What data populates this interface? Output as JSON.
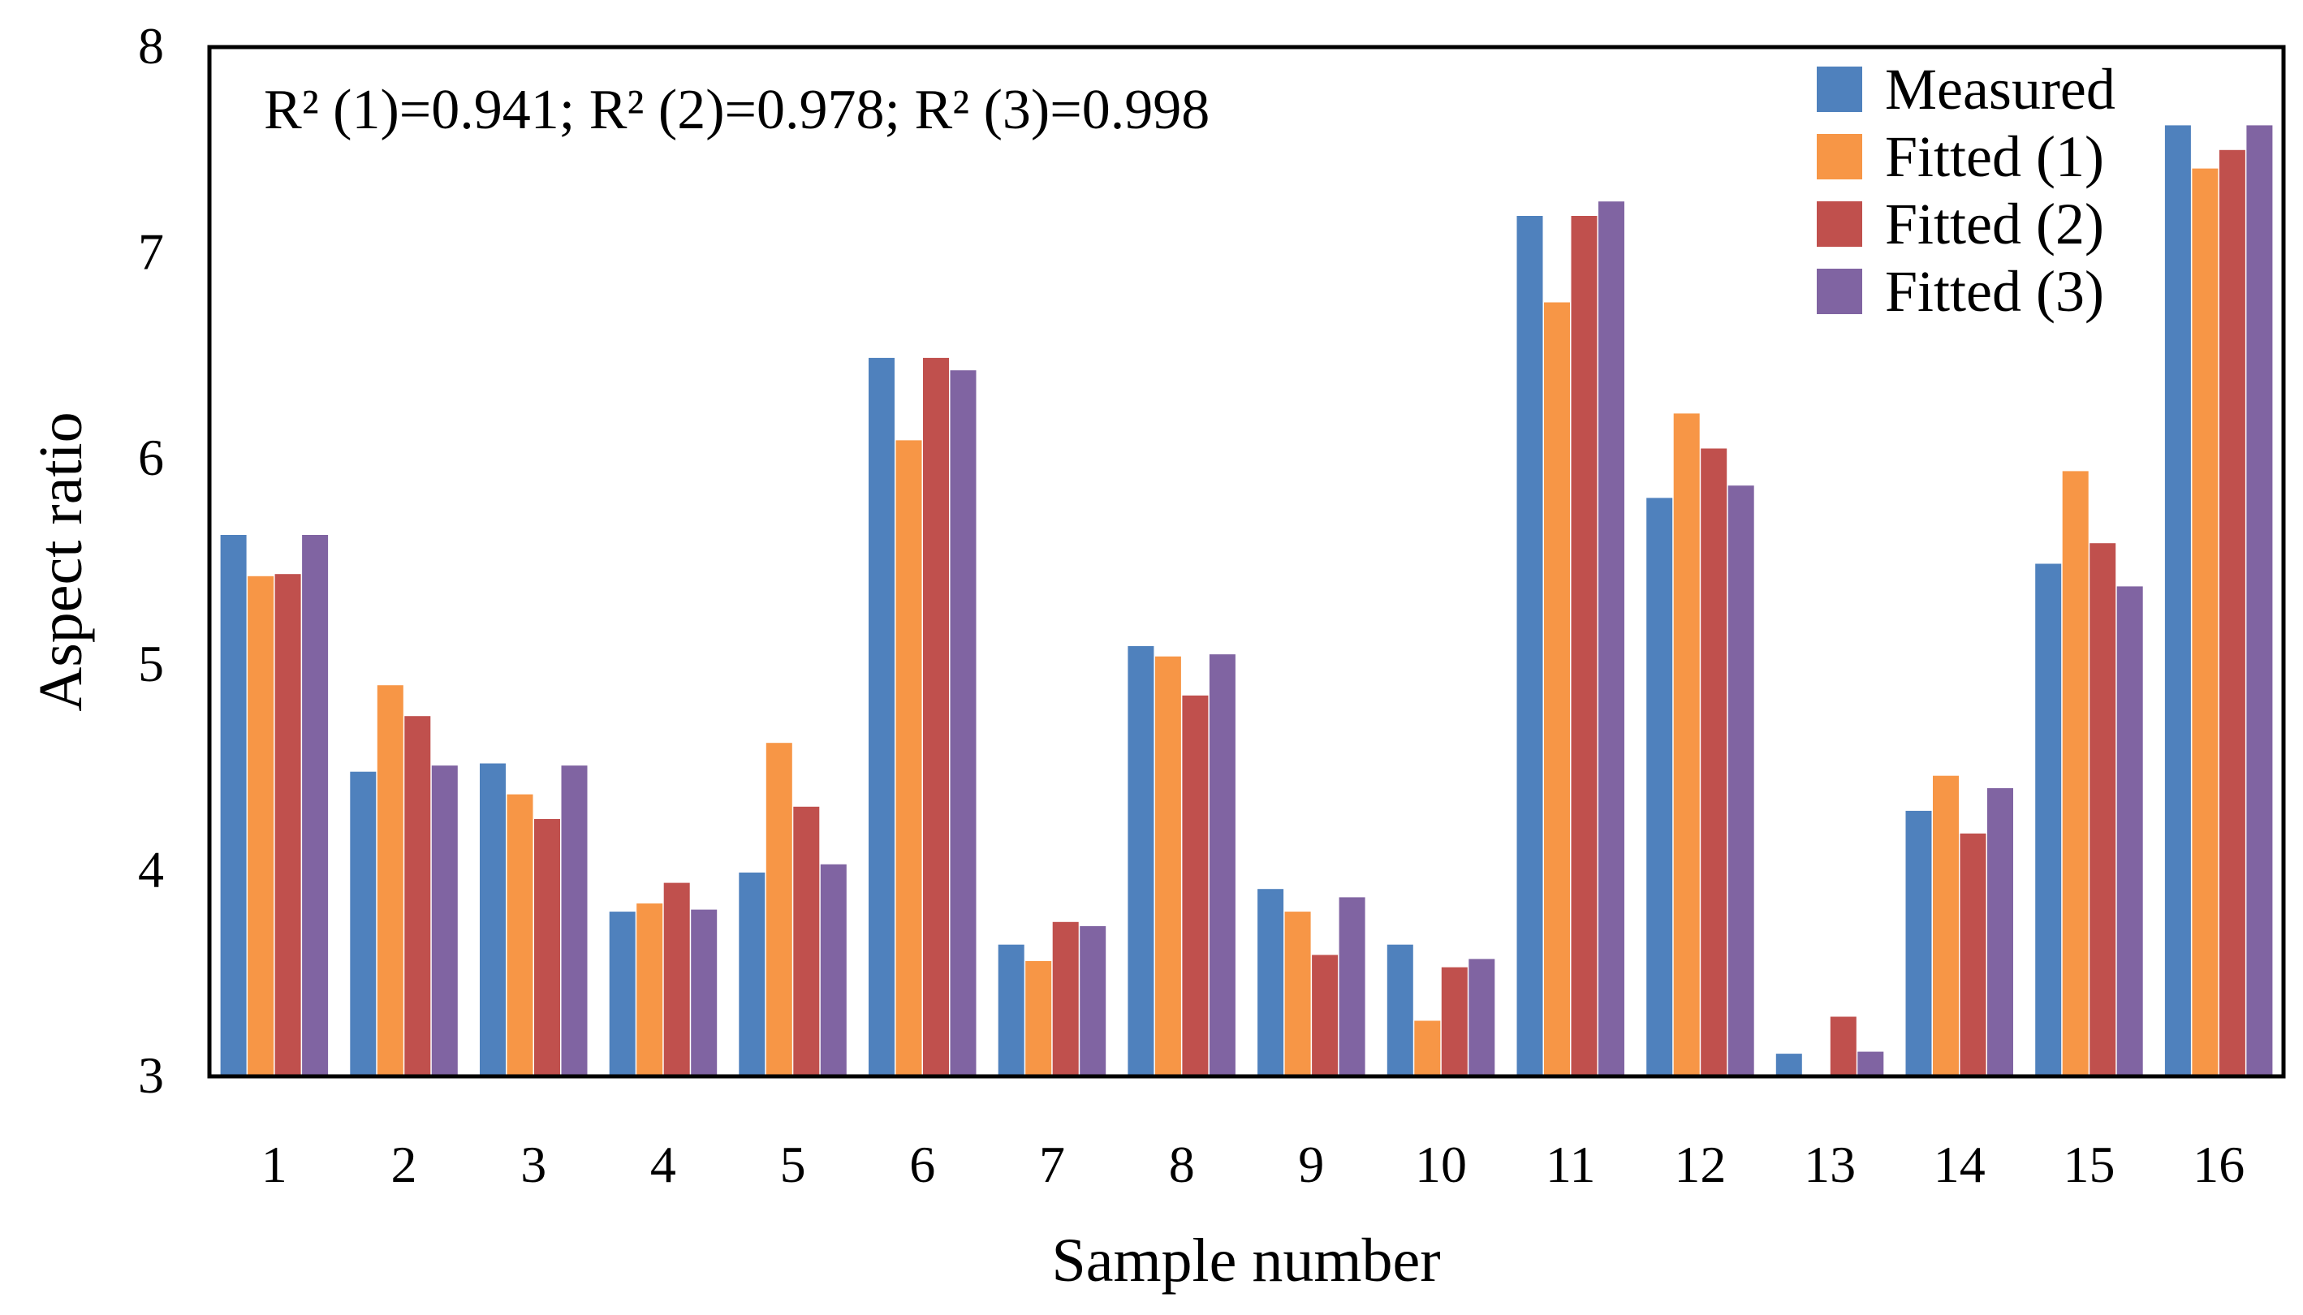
{
  "chart_data": {
    "type": "bar",
    "title": "",
    "xlabel": "Sample number",
    "ylabel": "Aspect ratio",
    "ylim": [
      3,
      8
    ],
    "yticks": [
      "3",
      "4",
      "5",
      "6",
      "7",
      "8"
    ],
    "categories": [
      "1",
      "2",
      "3",
      "4",
      "5",
      "6",
      "7",
      "8",
      "9",
      "10",
      "11",
      "12",
      "13",
      "14",
      "15",
      "16"
    ],
    "series": [
      {
        "name": "Measured",
        "color": "#4F81BD",
        "values": [
          5.63,
          4.48,
          4.52,
          3.8,
          3.99,
          6.49,
          3.64,
          5.09,
          3.91,
          3.64,
          7.18,
          5.81,
          3.11,
          4.29,
          5.49,
          7.62
        ]
      },
      {
        "name": "Fitted (1)",
        "color": "#F79646",
        "values": [
          5.43,
          4.9,
          4.37,
          3.84,
          4.62,
          6.09,
          3.56,
          5.04,
          3.8,
          3.27,
          6.76,
          6.22,
          2.95,
          4.46,
          5.94,
          7.41
        ]
      },
      {
        "name": "Fitted (2)",
        "color": "#C0504D",
        "values": [
          5.44,
          4.75,
          4.25,
          3.94,
          4.31,
          6.49,
          3.75,
          4.85,
          3.59,
          3.53,
          7.18,
          6.05,
          3.29,
          4.18,
          5.59,
          7.5
        ]
      },
      {
        "name": "Fitted (3)",
        "color": "#8064A2",
        "values": [
          5.63,
          4.51,
          4.51,
          3.81,
          4.03,
          6.43,
          3.73,
          5.05,
          3.87,
          3.57,
          7.25,
          5.87,
          3.12,
          4.4,
          5.38,
          7.62
        ]
      }
    ],
    "annotation": "R² (1)=0.941; R² (2)=0.978; R² (3)=0.998",
    "legend_position": "top-right"
  }
}
